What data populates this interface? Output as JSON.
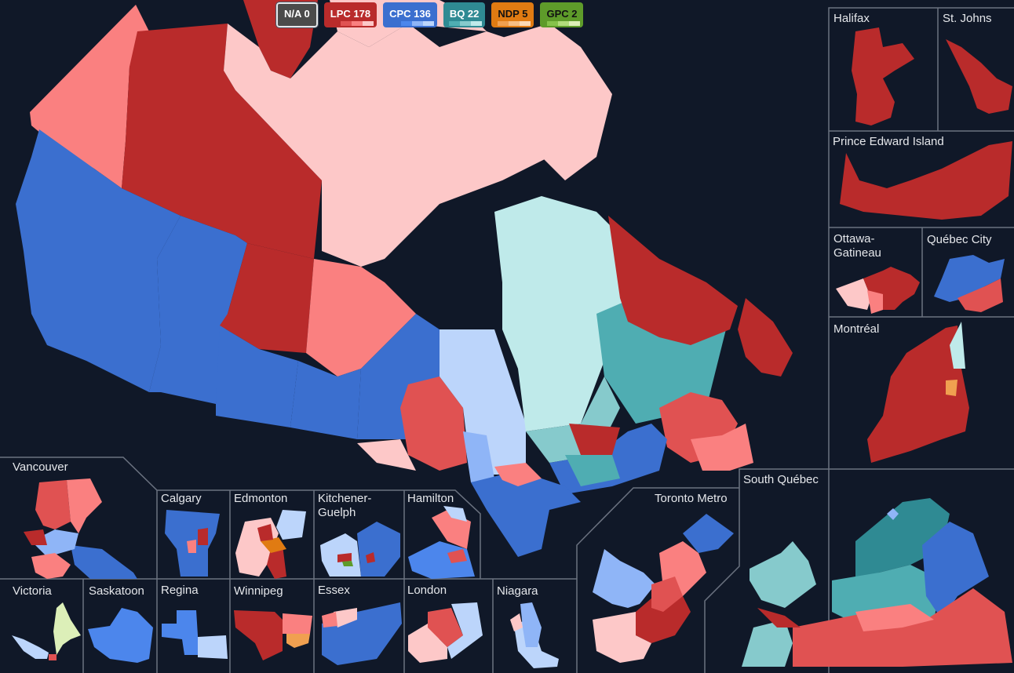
{
  "colors": {
    "background": "#101828",
    "border": "#6b7280",
    "lpc": [
      "#b92b2b",
      "#e05252",
      "#fa8080",
      "#fdc8c8"
    ],
    "cpc": [
      "#3b6fcf",
      "#4c86ec",
      "#8fb5f7",
      "#bcd5fb"
    ],
    "bq": [
      "#2f8a93",
      "#4fadb2",
      "#86cacc",
      "#bfeaea"
    ],
    "ndp": [
      "#e07b12",
      "#f0a050",
      "#f7be84",
      "#fcd9b4"
    ],
    "gpc": [
      "#5e9b2a",
      "#86c24b",
      "#b2dc7c",
      "#dcefb8"
    ],
    "na": "#4b4b4b"
  },
  "legend": [
    {
      "id": "na",
      "label": "N/A 0",
      "party": "N/A",
      "seats": 0,
      "bg": "#4b4b4b",
      "fg": "#ffffff",
      "shades": []
    },
    {
      "id": "lpc",
      "label": "LPC 178",
      "party": "LPC",
      "seats": 178,
      "bg": "#b92b2b",
      "fg": "#ffffff",
      "shades": [
        "#e05252",
        "#fa8080",
        "#fdc8c8"
      ]
    },
    {
      "id": "cpc",
      "label": "CPC 136",
      "party": "CPC",
      "seats": 136,
      "bg": "#3b6fcf",
      "fg": "#ffffff",
      "shades": [
        "#4c86ec",
        "#8fb5f7",
        "#bcd5fb"
      ]
    },
    {
      "id": "bq",
      "label": "BQ 22",
      "party": "BQ",
      "seats": 22,
      "bg": "#2f8a93",
      "fg": "#ffffff",
      "shades": [
        "#4fadb2",
        "#86cacc",
        "#bfeaea"
      ]
    },
    {
      "id": "ndp",
      "label": "NDP 5",
      "party": "NDP",
      "seats": 5,
      "bg": "#e07b12",
      "fg": "#111111",
      "shades": [
        "#f0a050",
        "#f7be84",
        "#fcd9b4"
      ]
    },
    {
      "id": "gpc",
      "label": "GPC 2",
      "party": "GPC",
      "seats": 2,
      "bg": "#5e9b2a",
      "fg": "#111111",
      "shades": [
        "#86c24b",
        "#b2dc7c",
        "#dcefb8"
      ]
    }
  ],
  "insets": {
    "halifax": "Halifax",
    "st_johns": "St. Johns",
    "pei": "Prince Edward Island",
    "ottawa": "Ottawa-\nGatineau",
    "quebec_city": "Québec City",
    "montreal": "Montréal",
    "south_quebec": "South Québec",
    "toronto": "Toronto Metro",
    "vancouver": "Vancouver",
    "calgary": "Calgary",
    "edmonton": "Edmonton",
    "kitchener": "Kitchener-\nGuelph",
    "hamilton": "Hamilton",
    "victoria": "Victoria",
    "saskatoon": "Saskatoon",
    "regina": "Regina",
    "winnipeg": "Winnipeg",
    "essex": "Essex",
    "london": "London",
    "niagara": "Niagara"
  }
}
